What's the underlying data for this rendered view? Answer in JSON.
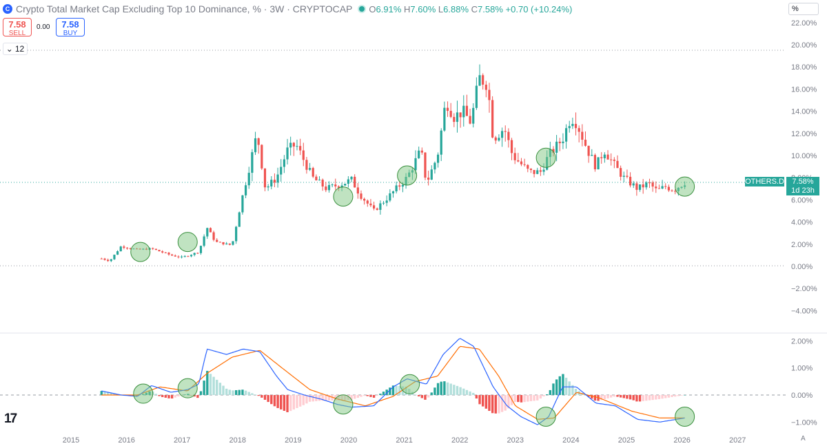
{
  "header": {
    "icon": "C",
    "title": "Crypto Total Market Cap Excluding Top 10 Dominance, % · 3W · CRYPTOCAP",
    "o_label": "O",
    "o_value": "6.91%",
    "h_label": "H",
    "h_value": "7.60%",
    "l_label": "L",
    "l_value": "6.88%",
    "c_label": "C",
    "c_value": "7.58%",
    "change": "+0.70 (+10.24%)"
  },
  "trade": {
    "sell_price": "7.58",
    "sell_label": "SELL",
    "spread": "0.00",
    "buy_price": "7.58",
    "buy_label": "BUY"
  },
  "collapse": {
    "icon": "chevron-down-icon",
    "count": "12"
  },
  "scale_mode": "%",
  "price_tag": {
    "symbol": "OTHERS.D",
    "value": "7.58%",
    "countdown": "1d 23h"
  },
  "auto_scale_button": "A",
  "colors": {
    "up": "#26a69a",
    "down": "#ef5350",
    "macd": "#2962ff",
    "signal": "#ff6d00",
    "hist_up_strong": "#26a69a",
    "hist_up_weak": "#b2dfdb",
    "hist_down_strong": "#ef5350",
    "hist_down_weak": "#ffcdd2",
    "highlight": "#81c784"
  },
  "chart_data": {
    "type": "candlestick",
    "title": "Crypto Total Market Cap Excluding Top 10 Dominance, %",
    "interval": "3W",
    "y_unit": "%",
    "x_ticks": [
      "2015",
      "2016",
      "2017",
      "2018",
      "2019",
      "2020",
      "2021",
      "2022",
      "2023",
      "2024",
      "2025",
      "2026",
      "2027"
    ],
    "y_ticks": [
      "22.00%",
      "20.00%",
      "18.00%",
      "16.00%",
      "14.00%",
      "12.00%",
      "10.00%",
      "8.00%",
      "6.00%",
      "4.00%",
      "2.00%",
      "0.00%",
      "−2.00%",
      "−4.00%"
    ],
    "ylim": [
      -4.5,
      22
    ],
    "xlim": [
      2014.3,
      2027.6
    ],
    "reference_lines": [
      19.5,
      0.05
    ],
    "current_value": 7.58,
    "price_key_points": [
      [
        2015.55,
        0.7
      ],
      [
        2015.7,
        0.5
      ],
      [
        2015.9,
        1.8
      ],
      [
        2016.2,
        1.5
      ],
      [
        2016.45,
        1.6
      ],
      [
        2016.8,
        1.0
      ],
      [
        2017.0,
        0.8
      ],
      [
        2017.3,
        1.3
      ],
      [
        2017.45,
        3.5
      ],
      [
        2017.6,
        2.2
      ],
      [
        2017.9,
        1.9
      ],
      [
        2018.05,
        5.5
      ],
      [
        2018.35,
        12.0
      ],
      [
        2018.5,
        7.0
      ],
      [
        2018.7,
        8.0
      ],
      [
        2018.9,
        10.5
      ],
      [
        2019.05,
        11.0
      ],
      [
        2019.2,
        9.5
      ],
      [
        2019.35,
        8.0
      ],
      [
        2019.6,
        7.0
      ],
      [
        2019.9,
        7.5
      ],
      [
        2020.05,
        7.8
      ],
      [
        2020.2,
        6.5
      ],
      [
        2020.45,
        5.0
      ],
      [
        2020.7,
        6.2
      ],
      [
        2021.05,
        8.0
      ],
      [
        2021.3,
        10.5
      ],
      [
        2021.4,
        7.5
      ],
      [
        2021.6,
        10.0
      ],
      [
        2021.75,
        15.0
      ],
      [
        2021.9,
        13.5
      ],
      [
        2022.05,
        14.0
      ],
      [
        2022.2,
        13.0
      ],
      [
        2022.35,
        17.0
      ],
      [
        2022.5,
        16.5
      ],
      [
        2022.6,
        11.5
      ],
      [
        2022.8,
        12.5
      ],
      [
        2022.95,
        10.0
      ],
      [
        2023.25,
        8.5
      ],
      [
        2023.45,
        8.5
      ],
      [
        2023.6,
        10.0
      ],
      [
        2023.85,
        11.5
      ],
      [
        2024.0,
        13.5
      ],
      [
        2024.1,
        13.0
      ],
      [
        2024.3,
        10.5
      ],
      [
        2024.45,
        9.0
      ],
      [
        2024.6,
        10.5
      ],
      [
        2024.8,
        9.0
      ],
      [
        2024.95,
        8.0
      ],
      [
        2025.2,
        7.0
      ],
      [
        2025.4,
        7.5
      ],
      [
        2025.55,
        6.8
      ],
      [
        2025.7,
        7.2
      ],
      [
        2025.85,
        6.9
      ],
      [
        2026.05,
        7.58
      ]
    ],
    "macd": {
      "y_ticks": [
        "2.00%",
        "1.00%",
        "0.00%",
        "−1.00%"
      ],
      "ylim": [
        -1.5,
        2.2
      ],
      "macd_key_points": [
        [
          2015.55,
          0.15
        ],
        [
          2015.9,
          0.0
        ],
        [
          2016.2,
          -0.05
        ],
        [
          2016.45,
          0.35
        ],
        [
          2016.8,
          0.1
        ],
        [
          2017.1,
          0.2
        ],
        [
          2017.3,
          0.4
        ],
        [
          2017.45,
          1.7
        ],
        [
          2017.8,
          1.5
        ],
        [
          2018.1,
          1.7
        ],
        [
          2018.4,
          1.6
        ],
        [
          2018.7,
          0.7
        ],
        [
          2018.9,
          0.2
        ],
        [
          2019.2,
          0.0
        ],
        [
          2019.5,
          -0.15
        ],
        [
          2019.8,
          -0.35
        ],
        [
          2020.05,
          -0.45
        ],
        [
          2020.45,
          -0.4
        ],
        [
          2020.8,
          0.3
        ],
        [
          2021.05,
          0.6
        ],
        [
          2021.4,
          0.4
        ],
        [
          2021.7,
          1.5
        ],
        [
          2022.0,
          2.1
        ],
        [
          2022.25,
          1.8
        ],
        [
          2022.6,
          0.3
        ],
        [
          2022.85,
          -0.4
        ],
        [
          2023.1,
          -0.8
        ],
        [
          2023.4,
          -1.1
        ],
        [
          2023.6,
          -0.8
        ],
        [
          2023.85,
          0.3
        ],
        [
          2024.1,
          0.3
        ],
        [
          2024.45,
          -0.3
        ],
        [
          2024.8,
          -0.4
        ],
        [
          2025.2,
          -0.9
        ],
        [
          2025.6,
          -1.0
        ],
        [
          2026.05,
          -0.85
        ]
      ],
      "signal_key_points": [
        [
          2015.55,
          0.0
        ],
        [
          2016.2,
          0.0
        ],
        [
          2016.6,
          0.3
        ],
        [
          2017.1,
          0.15
        ],
        [
          2017.45,
          0.8
        ],
        [
          2017.9,
          1.4
        ],
        [
          2018.4,
          1.65
        ],
        [
          2018.8,
          1.0
        ],
        [
          2019.3,
          0.2
        ],
        [
          2019.8,
          -0.15
        ],
        [
          2020.3,
          -0.4
        ],
        [
          2020.8,
          -0.05
        ],
        [
          2021.2,
          0.5
        ],
        [
          2021.6,
          0.7
        ],
        [
          2022.0,
          1.8
        ],
        [
          2022.35,
          1.7
        ],
        [
          2022.7,
          0.7
        ],
        [
          2023.0,
          -0.4
        ],
        [
          2023.4,
          -0.9
        ],
        [
          2023.7,
          -0.85
        ],
        [
          2024.1,
          0.1
        ],
        [
          2024.5,
          -0.1
        ],
        [
          2025.1,
          -0.6
        ],
        [
          2025.6,
          -0.85
        ],
        [
          2026.05,
          -0.85
        ]
      ]
    },
    "highlight_circles_price": [
      [
        2016.25,
        1.3
      ],
      [
        2017.1,
        2.2
      ],
      [
        2019.9,
        6.3
      ],
      [
        2021.05,
        8.2
      ],
      [
        2023.55,
        9.8
      ],
      [
        2026.05,
        7.2
      ]
    ],
    "highlight_circles_macd": [
      [
        2016.3,
        0.05
      ],
      [
        2017.1,
        0.25
      ],
      [
        2019.9,
        -0.35
      ],
      [
        2021.1,
        0.4
      ],
      [
        2023.55,
        -0.8
      ],
      [
        2026.05,
        -0.8
      ]
    ]
  }
}
